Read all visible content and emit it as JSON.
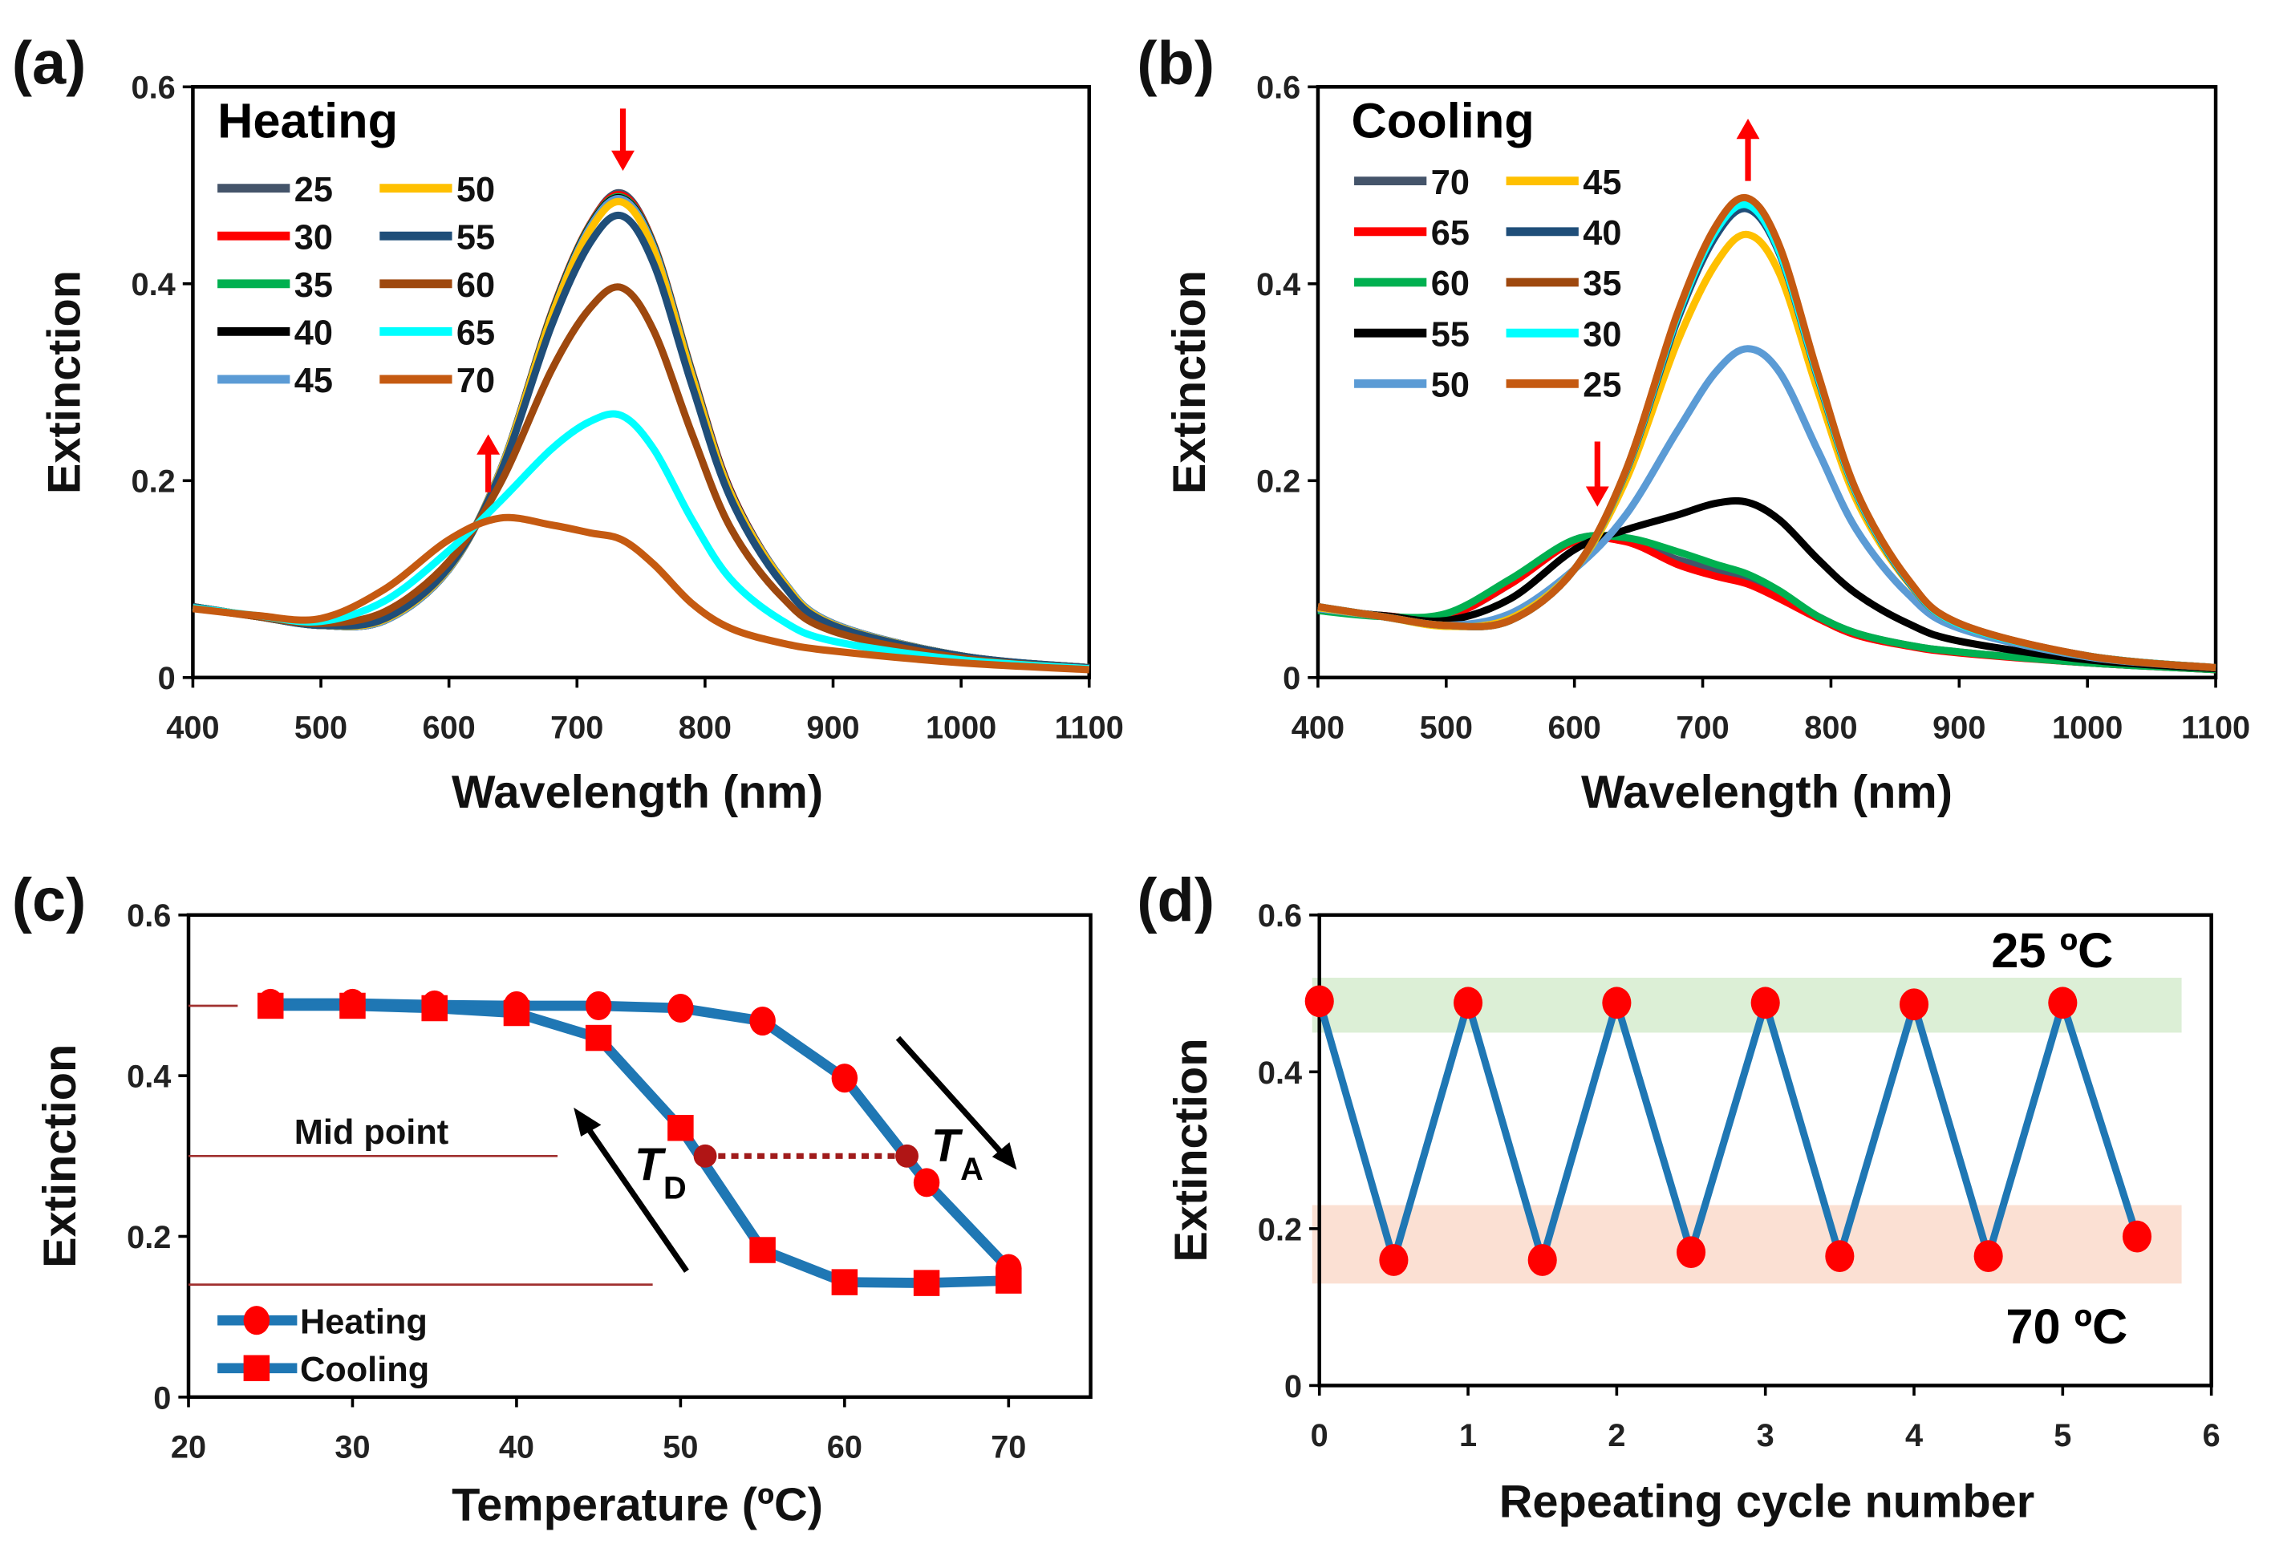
{
  "chart_data": [
    {
      "panel_label": "(a)",
      "type": "line",
      "title": "Heating",
      "xlabel": "Wavelength (nm)",
      "ylabel": "Extinction",
      "xlim": [
        400,
        1100
      ],
      "ylim": [
        0,
        0.6
      ],
      "xticks": [
        "400",
        "500",
        "600",
        "700",
        "800",
        "900",
        "1000",
        "1100"
      ],
      "yticks": [
        "0",
        "0.2",
        "0.4",
        "0.6"
      ],
      "grid": false,
      "legend_placement": "top-left",
      "annotations": [
        {
          "type": "arrow",
          "direction": "down",
          "x": 735,
          "meaning": "peak decreases"
        },
        {
          "type": "arrow",
          "direction": "up",
          "x": 630,
          "meaning": "shoulder increases"
        }
      ],
      "x": [
        400,
        450,
        500,
        550,
        600,
        640,
        680,
        710,
        735,
        760,
        790,
        820,
        860,
        900,
        1000,
        1100
      ],
      "series": [
        {
          "name": "25",
          "color": "#44546a",
          "values": [
            0.072,
            0.062,
            0.053,
            0.058,
            0.11,
            0.21,
            0.37,
            0.46,
            0.492,
            0.44,
            0.31,
            0.19,
            0.1,
            0.055,
            0.022,
            0.01
          ]
        },
        {
          "name": "30",
          "color": "#ff0000",
          "values": [
            0.072,
            0.062,
            0.053,
            0.058,
            0.11,
            0.21,
            0.37,
            0.46,
            0.49,
            0.44,
            0.31,
            0.19,
            0.1,
            0.055,
            0.022,
            0.01
          ]
        },
        {
          "name": "35",
          "color": "#00b050",
          "values": [
            0.072,
            0.062,
            0.053,
            0.058,
            0.11,
            0.21,
            0.369,
            0.459,
            0.488,
            0.439,
            0.309,
            0.189,
            0.1,
            0.055,
            0.022,
            0.01
          ]
        },
        {
          "name": "40",
          "color": "#000000",
          "values": [
            0.072,
            0.062,
            0.053,
            0.058,
            0.11,
            0.21,
            0.368,
            0.458,
            0.487,
            0.438,
            0.308,
            0.189,
            0.1,
            0.055,
            0.022,
            0.01
          ]
        },
        {
          "name": "45",
          "color": "#5b9bd5",
          "values": [
            0.072,
            0.062,
            0.053,
            0.058,
            0.11,
            0.21,
            0.367,
            0.457,
            0.486,
            0.437,
            0.307,
            0.188,
            0.1,
            0.055,
            0.022,
            0.01
          ]
        },
        {
          "name": "50",
          "color": "#ffc000",
          "values": [
            0.072,
            0.062,
            0.053,
            0.059,
            0.111,
            0.209,
            0.366,
            0.454,
            0.483,
            0.434,
            0.305,
            0.187,
            0.099,
            0.054,
            0.022,
            0.01
          ]
        },
        {
          "name": "55",
          "color": "#1f4e79",
          "values": [
            0.072,
            0.062,
            0.053,
            0.06,
            0.112,
            0.207,
            0.357,
            0.441,
            0.469,
            0.42,
            0.296,
            0.182,
            0.096,
            0.053,
            0.022,
            0.01
          ]
        },
        {
          "name": "60",
          "color": "#9e480e",
          "values": [
            0.071,
            0.062,
            0.055,
            0.067,
            0.118,
            0.197,
            0.312,
            0.375,
            0.396,
            0.352,
            0.247,
            0.152,
            0.082,
            0.047,
            0.02,
            0.009
          ]
        },
        {
          "name": "65",
          "color": "#00ffff",
          "values": [
            0.071,
            0.063,
            0.057,
            0.078,
            0.129,
            0.179,
            0.232,
            0.26,
            0.266,
            0.232,
            0.16,
            0.1,
            0.058,
            0.037,
            0.018,
            0.009
          ]
        },
        {
          "name": "70",
          "color": "#c55a11",
          "values": [
            0.07,
            0.063,
            0.06,
            0.09,
            0.14,
            0.162,
            0.155,
            0.147,
            0.14,
            0.115,
            0.075,
            0.05,
            0.035,
            0.027,
            0.015,
            0.008
          ]
        }
      ]
    },
    {
      "panel_label": "(b)",
      "type": "line",
      "title": "Cooling",
      "xlabel": "Wavelength (nm)",
      "ylabel": "Extinction",
      "xlim": [
        400,
        1100
      ],
      "ylim": [
        0,
        0.6
      ],
      "xticks": [
        "400",
        "500",
        "600",
        "700",
        "800",
        "900",
        "1000",
        "1100"
      ],
      "yticks": [
        "0",
        "0.2",
        "0.4",
        "0.6"
      ],
      "grid": false,
      "legend_placement": "top-left",
      "annotations": [
        {
          "type": "arrow",
          "direction": "up",
          "x": 735,
          "meaning": "peak increases"
        },
        {
          "type": "arrow",
          "direction": "down",
          "x": 620,
          "meaning": "shoulder decreases"
        }
      ],
      "x": [
        400,
        450,
        500,
        550,
        600,
        640,
        680,
        710,
        735,
        760,
        790,
        820,
        860,
        900,
        1000,
        1100
      ],
      "series": [
        {
          "name": "70",
          "color": "#44546a",
          "values": [
            0.07,
            0.063,
            0.062,
            0.095,
            0.14,
            0.14,
            0.12,
            0.11,
            0.1,
            0.085,
            0.062,
            0.045,
            0.033,
            0.026,
            0.015,
            0.008
          ]
        },
        {
          "name": "65",
          "color": "#ff0000",
          "values": [
            0.07,
            0.063,
            0.062,
            0.095,
            0.138,
            0.138,
            0.115,
            0.103,
            0.095,
            0.08,
            0.06,
            0.043,
            0.032,
            0.025,
            0.015,
            0.008
          ]
        },
        {
          "name": "60",
          "color": "#00b050",
          "values": [
            0.068,
            0.062,
            0.065,
            0.1,
            0.14,
            0.142,
            0.128,
            0.115,
            0.105,
            0.088,
            0.062,
            0.045,
            0.033,
            0.026,
            0.015,
            0.008
          ]
        },
        {
          "name": "55",
          "color": "#000000",
          "values": [
            0.07,
            0.063,
            0.058,
            0.08,
            0.13,
            0.15,
            0.165,
            0.177,
            0.178,
            0.16,
            0.12,
            0.085,
            0.055,
            0.037,
            0.018,
            0.009
          ]
        },
        {
          "name": "50",
          "color": "#5b9bd5",
          "values": [
            0.07,
            0.062,
            0.053,
            0.065,
            0.11,
            0.165,
            0.25,
            0.31,
            0.334,
            0.31,
            0.23,
            0.15,
            0.085,
            0.05,
            0.021,
            0.01
          ]
        },
        {
          "name": "45",
          "color": "#ffc000",
          "values": [
            0.071,
            0.062,
            0.052,
            0.06,
            0.11,
            0.2,
            0.34,
            0.42,
            0.45,
            0.41,
            0.29,
            0.18,
            0.097,
            0.054,
            0.022,
            0.01
          ]
        },
        {
          "name": "40",
          "color": "#1f4e79",
          "values": [
            0.072,
            0.062,
            0.053,
            0.058,
            0.11,
            0.208,
            0.362,
            0.448,
            0.476,
            0.43,
            0.303,
            0.186,
            0.098,
            0.054,
            0.022,
            0.01
          ]
        },
        {
          "name": "35",
          "color": "#9e480e",
          "values": [
            0.072,
            0.062,
            0.053,
            0.058,
            0.11,
            0.21,
            0.368,
            0.456,
            0.485,
            0.436,
            0.307,
            0.188,
            0.099,
            0.055,
            0.022,
            0.01
          ]
        },
        {
          "name": "30",
          "color": "#00ffff",
          "values": [
            0.072,
            0.062,
            0.053,
            0.058,
            0.11,
            0.209,
            0.366,
            0.453,
            0.48,
            0.432,
            0.305,
            0.187,
            0.099,
            0.054,
            0.022,
            0.01
          ]
        },
        {
          "name": "25",
          "color": "#c55a11",
          "values": [
            0.072,
            0.062,
            0.053,
            0.058,
            0.11,
            0.21,
            0.369,
            0.458,
            0.487,
            0.438,
            0.308,
            0.189,
            0.1,
            0.055,
            0.022,
            0.01
          ]
        }
      ]
    },
    {
      "panel_label": "(c)",
      "type": "line",
      "xlabel": "Temperature (ºC)",
      "ylabel": "Extinction",
      "xlim": [
        20,
        75
      ],
      "ylim": [
        0,
        0.6
      ],
      "xticks": [
        "20",
        "30",
        "40",
        "50",
        "60",
        "70"
      ],
      "yticks": [
        "0",
        "0.2",
        "0.4",
        "0.6"
      ],
      "grid": false,
      "legend_placement": "bottom-left",
      "line_color": "#1f77b4",
      "marker_color": "#ff0000",
      "series": [
        {
          "name": "Heating",
          "marker": "circle",
          "x": [
            25,
            30,
            35,
            40,
            45,
            50,
            55,
            60,
            65,
            70
          ],
          "values": [
            0.49,
            0.49,
            0.488,
            0.487,
            0.487,
            0.484,
            0.468,
            0.397,
            0.267,
            0.16
          ]
        },
        {
          "name": "Cooling",
          "marker": "square",
          "x": [
            70,
            65,
            60,
            55,
            50,
            45,
            40,
            35,
            30,
            25
          ],
          "values": [
            0.145,
            0.142,
            0.143,
            0.183,
            0.335,
            0.447,
            0.478,
            0.484,
            0.487,
            0.487
          ]
        }
      ],
      "midpoint": {
        "label": "Mid point",
        "value": 0.3,
        "TD": 51.5,
        "TA": 63.8
      },
      "reference_lines": [
        {
          "value": 0.487,
          "to": 23
        },
        {
          "value": 0.3,
          "to": 42.5
        },
        {
          "value": 0.14,
          "to": 48.3
        }
      ],
      "labels": {
        "td_main": "T",
        "td_sub": "D",
        "ta_main": "T",
        "ta_sub": "A"
      }
    },
    {
      "panel_label": "(d)",
      "type": "line",
      "xlabel": "Repeating cycle number",
      "ylabel": "Extinction",
      "xlim": [
        0,
        6
      ],
      "ylim": [
        0,
        0.6
      ],
      "xticks": [
        "0",
        "1",
        "2",
        "3",
        "4",
        "5",
        "6"
      ],
      "yticks": [
        "0",
        "0.2",
        "0.4",
        "0.6"
      ],
      "grid": false,
      "line_color": "#1f77b4",
      "marker_color": "#ff0000",
      "x": [
        0,
        0.5,
        1,
        1.5,
        2,
        2.5,
        3,
        3.5,
        4,
        4.5,
        5,
        5.5
      ],
      "values": [
        0.49,
        0.16,
        0.488,
        0.16,
        0.488,
        0.17,
        0.488,
        0.165,
        0.486,
        0.165,
        0.488,
        0.19
      ],
      "bands": [
        {
          "label": "25 ºC",
          "range": [
            0.45,
            0.52
          ],
          "color": "#dcefd6"
        },
        {
          "label": "70 ºC",
          "range": [
            0.13,
            0.23
          ],
          "color": "#fbe0d3"
        }
      ]
    }
  ]
}
